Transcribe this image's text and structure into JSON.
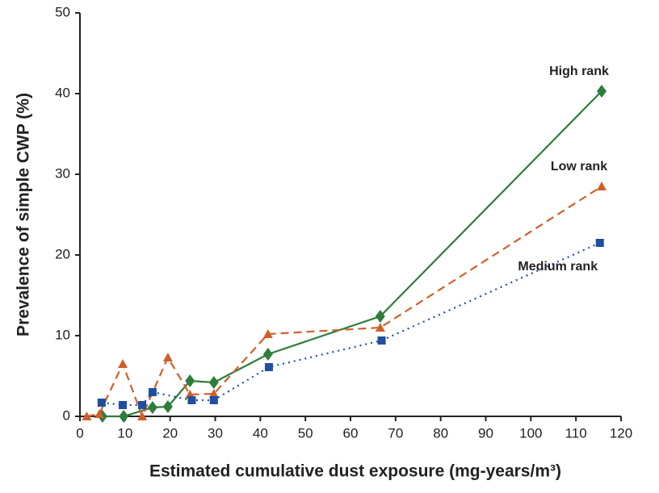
{
  "chart_data": {
    "type": "line",
    "x_label": "Estimated cumulative dust exposure (mg-years/m³)",
    "y_label": "Prevalence of simple CWP (%)",
    "xlim": [
      0,
      120
    ],
    "xticks": [
      0,
      10,
      20,
      30,
      40,
      50,
      60,
      70,
      80,
      90,
      100,
      110,
      120
    ],
    "ylim": [
      0,
      50
    ],
    "yticks": [
      0,
      10,
      20,
      30,
      40,
      50
    ],
    "series": [
      {
        "name": "High rank",
        "color": "#2e7d3a",
        "line_style": "solid",
        "marker": "diamond",
        "x": [
          5,
          9.7,
          16.1,
          19.5,
          24.4,
          29.7,
          41.7,
          66.6,
          115.7
        ],
        "values": [
          0,
          0,
          1.1,
          1.2,
          4.4,
          4.2,
          7.7,
          12.4,
          40.3
        ]
      },
      {
        "name": "Low rank",
        "color": "#d0602a",
        "line_style": "dashed",
        "marker": "triangle",
        "x": [
          1.5,
          4.3,
          9.5,
          13.8,
          19.5,
          24.4,
          29.7,
          41.7,
          66.6,
          115.7
        ],
        "values": [
          0,
          0.3,
          6.5,
          0,
          7.3,
          2.7,
          2.8,
          10.2,
          11,
          28.5
        ]
      },
      {
        "name": "Medium rank",
        "color": "#1f4fa0",
        "line_style": "dotted",
        "marker": "square",
        "x": [
          4.8,
          9.5,
          13.8,
          16.1,
          24.8,
          29.7,
          41.9,
          66.9,
          115.3
        ],
        "values": [
          1.7,
          1.4,
          1.4,
          3,
          2,
          2,
          6.1,
          9.4,
          21.5
        ]
      }
    ]
  }
}
